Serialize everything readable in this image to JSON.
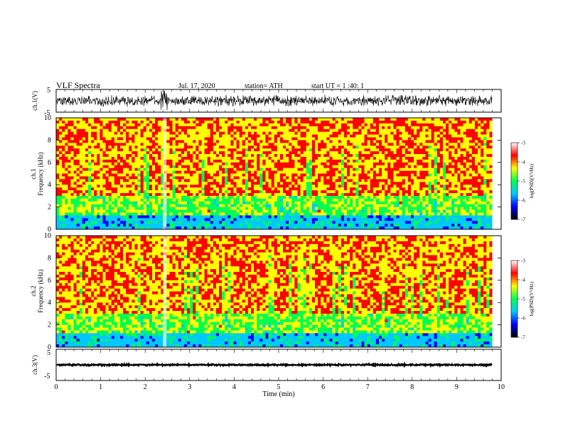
{
  "header": {
    "title": "VLF  Spectra",
    "date": "Jul. 17, 2020",
    "station": "station= ATH",
    "start": "start  UT  =   1 :40: 1"
  },
  "chart_data": [
    {
      "type": "line",
      "name": "ch1-waveform",
      "ylabel": "ch.1(V)",
      "ylim": [
        -5,
        5
      ],
      "yticks": [
        "5",
        "-5"
      ],
      "xlim": [
        0,
        10
      ],
      "trace_color": "#000000"
    },
    {
      "type": "heatmap",
      "name": "ch1-spectrogram",
      "ylabel_line1": "ch.1",
      "ylabel_line2": "Frequency  (kHz)",
      "ylim": [
        0,
        10
      ],
      "yticks": [
        "0",
        "2",
        "4",
        "6",
        "8",
        "10"
      ],
      "xlim": [
        0,
        9.8
      ],
      "colorbar": {
        "label": "log(PSD)(V²/Hz)",
        "range": [
          -7,
          -3
        ],
        "ticks": [
          "-3",
          "-4",
          "-5",
          "-6",
          "-7"
        ],
        "colors": [
          "#000000",
          "#0000ff",
          "#00c8ff",
          "#00ff50",
          "#ffff00",
          "#ff0000",
          "#ffffff"
        ]
      }
    },
    {
      "type": "heatmap",
      "name": "ch2-spectrogram",
      "ylabel_line1": "ch.2",
      "ylabel_line2": "Frequency  (kHz)",
      "ylim": [
        0,
        10
      ],
      "yticks": [
        "0",
        "2",
        "4",
        "6",
        "8",
        "10"
      ],
      "xlim": [
        0,
        9.8
      ],
      "colorbar": {
        "label": "log(PSD)(V²/Hz)",
        "range": [
          -7,
          -3
        ],
        "ticks": [
          "-3",
          "-4",
          "-5",
          "-6",
          "-7"
        ],
        "colors": [
          "#000000",
          "#0000ff",
          "#00c8ff",
          "#00ff50",
          "#ffff00",
          "#ff0000",
          "#ffffff"
        ]
      }
    },
    {
      "type": "line",
      "name": "ch3-waveform",
      "ylabel": "ch.3(V)",
      "ylim": [
        -5,
        5
      ],
      "yticks": [
        "5",
        "-5"
      ],
      "xlim": [
        0,
        10
      ],
      "trace_color": "#000000"
    }
  ],
  "x_axis": {
    "label": "Time  (min)",
    "ticks": [
      "0",
      "1",
      "2",
      "3",
      "4",
      "5",
      "6",
      "7",
      "8",
      "9",
      "10"
    ],
    "range": [
      0,
      10
    ]
  }
}
